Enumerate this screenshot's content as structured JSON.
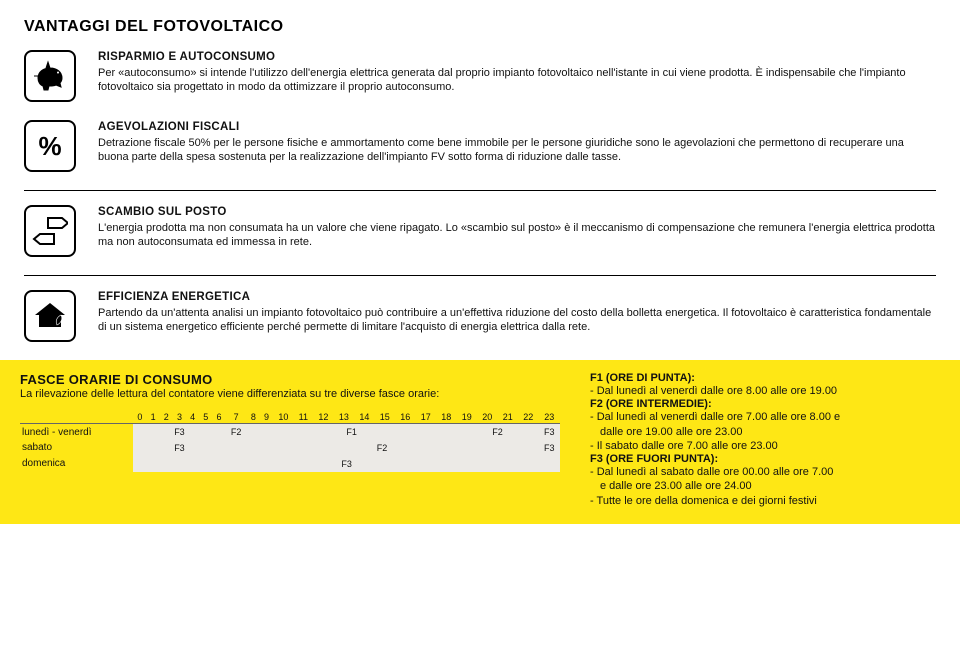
{
  "page_title": "VANTAGGI DEL FOTOVOLTAICO",
  "sections": [
    {
      "icon": "piggy-bank-icon",
      "title": "RISPARMIO E AUTOCONSUMO",
      "text": "Per «autoconsumo» si intende l'utilizzo dell'energia elettrica generata dal proprio impianto fotovoltaico nell'istante in cui viene prodotta. È indispensabile che l'impianto fotovoltaico sia progettato in modo da ottimizzare il proprio autoconsumo."
    },
    {
      "icon": "percent-icon",
      "title": "AGEVOLAZIONI FISCALI",
      "text": "Detrazione fiscale 50% per le persone fisiche e ammortamento come bene immobile per le persone giuridiche sono le agevolazioni che permettono di recuperare una buona parte della spesa sostenuta per la realizzazione dell'impianto FV sotto forma di riduzione dalle tasse."
    },
    {
      "icon": "arrows-icon",
      "title": "SCAMBIO SUL POSTO",
      "text": "L'energia prodotta ma non consumata ha un valore che viene ripagato.  Lo «scambio sul posto» è il meccanismo di compensazione che remunera l'energia elettrica prodotta ma non autoconsumata ed immessa in rete."
    },
    {
      "icon": "house-leaf-icon",
      "title": "EFFICIENZA ENERGETICA",
      "text": "Partendo da un'attenta analisi un impianto fotovoltaico può contribuire a un'effettiva riduzione del costo della bolletta energetica. Il fotovoltaico è caratteristica fondamentale di un sistema energetico efficiente perché permette di limitare l'acquisto di energia elettrica dalla rete."
    }
  ],
  "fasce": {
    "title": "FASCE ORARIE DI CONSUMO",
    "intro": "La rilevazione delle lettura del contatore viene differenziata su tre diverse fasce orarie:",
    "hours": [
      "0",
      "1",
      "2",
      "3",
      "4",
      "5",
      "6",
      "7",
      "8",
      "9",
      "10",
      "11",
      "12",
      "13",
      "14",
      "15",
      "16",
      "17",
      "18",
      "19",
      "20",
      "21",
      "22",
      "23"
    ],
    "rows": [
      {
        "label": "lunedì - venerdì",
        "cells": [
          "F3",
          "F3",
          "F3",
          "F3",
          "F3",
          "F3",
          "F3",
          "F2",
          "F1",
          "F1",
          "F1",
          "F1",
          "F1",
          "F1",
          "F1",
          "F1",
          "F1",
          "F1",
          "F1",
          "F2",
          "F2",
          "F2",
          "F2",
          "F3"
        ]
      },
      {
        "label": "sabato",
        "cells": [
          "F3",
          "F3",
          "F3",
          "F3",
          "F3",
          "F3",
          "F3",
          "F2",
          "F2",
          "F2",
          "F2",
          "F2",
          "F2",
          "F2",
          "F2",
          "F2",
          "F2",
          "F2",
          "F2",
          "F2",
          "F2",
          "F2",
          "F2",
          "F3"
        ]
      },
      {
        "label": "domenica",
        "cells": [
          "F3",
          "F3",
          "F3",
          "F3",
          "F3",
          "F3",
          "F3",
          "F3",
          "F3",
          "F3",
          "F3",
          "F3",
          "F3",
          "F3",
          "F3",
          "F3",
          "F3",
          "F3",
          "F3",
          "F3",
          "F3",
          "F3",
          "F3",
          "F3"
        ]
      }
    ],
    "legend": [
      {
        "title": "F1 (ORE DI PUNTA):",
        "lines": [
          "- Dal lunedì al venerdì dalle ore 8.00 alle ore 19.00"
        ]
      },
      {
        "title": "F2 (ORE INTERMEDIE):",
        "lines": [
          "- Dal lunedì al venerdì dalle ore 7.00 alle ore 8.00 e",
          "  dalle ore 19.00 alle ore 23.00",
          "- Il sabato dalle ore 7.00 alle ore 23.00"
        ]
      },
      {
        "title": "F3 (ORE FUORI PUNTA):",
        "lines": [
          "- Dal lunedì al sabato dalle ore 00.00 alle ore 7.00",
          "  e dalle ore 23.00 alle ore 24.00",
          "- Tutte le ore della domenica e dei giorni festivi"
        ]
      }
    ]
  },
  "colors": {
    "yellow": "#fee715",
    "cell_bg": "#eceae6",
    "black": "#000000"
  }
}
